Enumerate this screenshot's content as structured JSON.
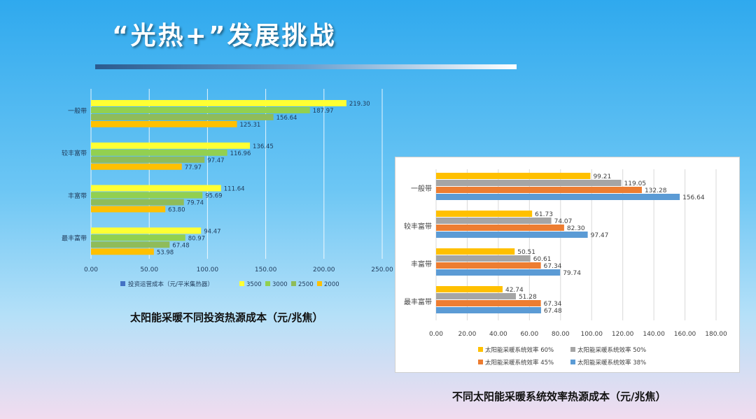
{
  "header": {
    "title": "“光热+”发展挑战"
  },
  "captions": {
    "left": "太阳能采暖不同投资热源成本（元/兆焦）",
    "right": "不同太阳能采暖系统效率热源成本（元/兆焦）"
  },
  "chart_data": [
    {
      "type": "bar",
      "orientation": "horizontal",
      "categories": [
        "一般带",
        "较丰富带",
        "丰富带",
        "最丰富带"
      ],
      "legend_title": "投资运营成本（元/平米集热器）",
      "series": [
        {
          "name": "3500",
          "color": "#ffff33",
          "values": [
            219.3,
            136.45,
            111.64,
            94.47
          ]
        },
        {
          "name": "3000",
          "color": "#92d050",
          "values": [
            187.97,
            116.96,
            95.69,
            80.97
          ]
        },
        {
          "name": "2500",
          "color": "#8fbc5a",
          "values": [
            156.64,
            97.47,
            79.74,
            67.48
          ]
        },
        {
          "name": "2000",
          "color": "#ffc000",
          "values": [
            125.31,
            77.97,
            63.8,
            53.98
          ]
        }
      ],
      "xlim": [
        0,
        250
      ],
      "xticks": [
        "0.00",
        "50.00",
        "100.00",
        "150.00",
        "200.00",
        "250.00"
      ],
      "value_labels": [
        [
          "219.30",
          "136.45",
          "111.64",
          "94.47"
        ],
        [
          "187.97",
          "116.96",
          "95.69",
          "80.97"
        ],
        [
          "156.64",
          "97.47",
          "79.74",
          "67.48"
        ],
        [
          "125.31",
          "77.97",
          "63.80",
          "53.98"
        ]
      ],
      "grid": true,
      "legend_position": "bottom",
      "legend_colors": {
        "title_marker": "#4472c4"
      }
    },
    {
      "type": "bar",
      "orientation": "horizontal",
      "categories": [
        "一般带",
        "较丰富带",
        "丰富带",
        "最丰富带"
      ],
      "series": [
        {
          "name": "太阳能采暖系统效率 60%",
          "color": "#ffc000",
          "values": [
            99.21,
            61.73,
            50.51,
            42.74
          ]
        },
        {
          "name": "太阳能采暖系统效率 50%",
          "color": "#a5a5a5",
          "values": [
            119.05,
            74.07,
            60.61,
            51.28
          ]
        },
        {
          "name": "太阳能采暖系统效率 45%",
          "color": "#ed7d31",
          "values": [
            132.28,
            82.3,
            67.34,
            67.34
          ]
        },
        {
          "name": "太阳能采暖系统效率 38%",
          "color": "#5b9bd5",
          "values": [
            156.64,
            97.47,
            79.74,
            67.48
          ]
        }
      ],
      "xlim": [
        0,
        180
      ],
      "xticks": [
        "0.00",
        "20.00",
        "40.00",
        "60.00",
        "80.00",
        "100.00",
        "120.00",
        "140.00",
        "160.00",
        "180.00"
      ],
      "value_labels": [
        [
          "99.21",
          "61.73",
          "50.51",
          "42.74"
        ],
        [
          "119.05",
          "74.07",
          "60.61",
          "51.28"
        ],
        [
          "132.28",
          "82.30",
          "67.34",
          "67.34"
        ],
        [
          "156.64",
          "97.47",
          "79.74",
          "67.48"
        ]
      ],
      "grid": true,
      "legend_position": "bottom"
    }
  ]
}
